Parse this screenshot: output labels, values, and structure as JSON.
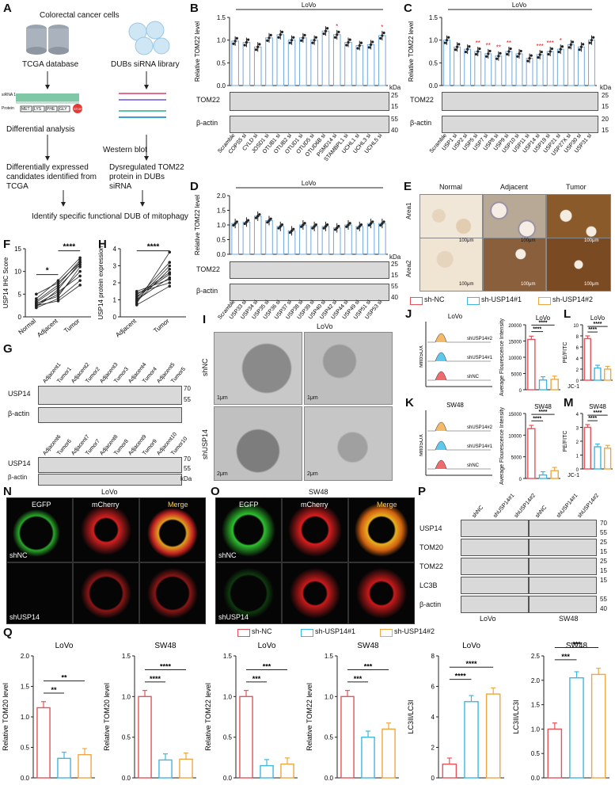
{
  "panels": {
    "A": {
      "letter": "A",
      "title": "Colorectal cancer cells",
      "tcga": "TCGA database",
      "dubs": "DUBs siRNA library",
      "diff": "Differential analysis",
      "wb": "Western blot",
      "cand": "Differentially expressed candidates identified from TCGA",
      "dysreg": "Dysregulated TOM22 protein in DUBs siRNA",
      "identify": "Identify specific functional DUB of mitophagy",
      "seq_label": "siRNA 1",
      "protein_label": "Protein",
      "aa": [
        "MET",
        "LYS",
        "PHE",
        "GLY"
      ],
      "stop": "STOP"
    },
    "B": {
      "letter": "B",
      "cell": "LoVo",
      "ylabel": "Relative TOM22 level",
      "blot1": "TOM22",
      "blot2": "β-actin",
      "kda": "kDa",
      "mw1": [
        "25",
        "15"
      ],
      "mw2": [
        "55",
        "40"
      ]
    },
    "C": {
      "letter": "C",
      "cell": "LoVo",
      "ylabel": "Relative TOM22 level",
      "blot1": "TOM22",
      "blot2": "β-actin",
      "kda": "kDa",
      "mw1": [
        "25",
        "15"
      ],
      "mw2": [
        "20",
        "15"
      ]
    },
    "D": {
      "letter": "D",
      "cell": "LoVo",
      "ylabel": "Relative TOM22 level",
      "blot1": "TOM22",
      "blot2": "β-actin",
      "kda": "kDa",
      "mw1": [
        "25",
        "15"
      ],
      "mw2": [
        "55",
        "40"
      ]
    },
    "E": {
      "letter": "E",
      "cols": [
        "Normal",
        "Adjacent",
        "Tumor"
      ],
      "rows": [
        "Area1",
        "Area2"
      ],
      "scale": "100μm"
    },
    "F": {
      "letter": "F"
    },
    "G": {
      "letter": "G",
      "row1": [
        "Adjacent1",
        "Tumor1",
        "Adjacent2",
        "Tumor2",
        "Adjacent3",
        "Tumor3",
        "Adjacent4",
        "Tumor4",
        "Adjacent5",
        "Tumor5"
      ],
      "row2": [
        "Adjacent6",
        "Tumor6",
        "Adjacent7",
        "Tumor7",
        "Adjacent8",
        "Tumor8",
        "Adjacent9",
        "Tumor9",
        "Adjacent10",
        "Tumor10"
      ],
      "blot1": "USP14",
      "blot2": "β-actin",
      "mw": [
        "70",
        "55"
      ],
      "mw2": [
        "55",
        "40"
      ],
      "kda": "kDa"
    },
    "H": {
      "letter": "H"
    },
    "I": {
      "letter": "I",
      "cell": "LoVo",
      "rows": [
        "shNC",
        "shUSP14"
      ],
      "scale_a": "1μm",
      "scale_b": "1μm",
      "scale_c": "2μm",
      "scale_d": "2μm"
    },
    "J": {
      "letter": "J",
      "cell": "LoVo",
      "xlabel": "MitoSOX",
      "traces": [
        "shUSP14#2",
        "shUSP14#1",
        "shNC"
      ],
      "bar_title": "LoVo",
      "bar_ylabel": "Average Flourescence Intensity"
    },
    "K": {
      "letter": "K",
      "cell": "SW48",
      "xlabel": "MitoSOX",
      "traces": [
        "shUSP14#2",
        "shUSP14#1",
        "shNC"
      ],
      "bar_title": "SW48",
      "bar_ylabel": "Average Flourescence Intensity"
    },
    "L": {
      "letter": "L",
      "cell": "LoVo",
      "ylabel": "PE/FITC",
      "xlabel": "JC-1"
    },
    "M": {
      "letter": "M",
      "cell": "SW48",
      "ylabel": "PE/FITC",
      "xlabel": "JC-1"
    },
    "N": {
      "letter": "N",
      "cell": "LoVo",
      "channels": [
        "EGFP",
        "mCherry",
        "Merge"
      ],
      "rows": [
        "shNC",
        "shUSP14"
      ]
    },
    "O": {
      "letter": "O",
      "cell": "SW48",
      "channels": [
        "EGFP",
        "mCherry",
        "Merge"
      ],
      "rows": [
        "shNC",
        "shUSP14"
      ]
    },
    "P": {
      "letter": "P",
      "lanes": [
        "shNC",
        "shUSP14#1",
        "shUSP14#2",
        "shNC",
        "shUSP14#1",
        "shUSP14#2"
      ],
      "blots": [
        "USP14",
        "TOM20",
        "TOM22",
        "LC3B",
        "β-actin"
      ],
      "mw": [
        "70",
        "55",
        "25",
        "15",
        "25",
        "15",
        "15",
        "55",
        "40"
      ],
      "cells": [
        "LoVo",
        "SW48"
      ]
    },
    "Q": {
      "letter": "Q"
    }
  },
  "legend": [
    "sh-NC",
    "sh-USP14#1",
    "sh-USP14#2"
  ],
  "colors": {
    "nc": "#e8525a",
    "s1": "#3fb8e0",
    "s2": "#f0a640",
    "bar_border": "#6fa8dc",
    "star": "#e02020"
  },
  "chart_data": [
    {
      "id": "B",
      "type": "bar",
      "title": "LoVo",
      "ylabel": "Relative TOM22 level",
      "ylim": [
        0,
        1.5
      ],
      "yticks": [
        0,
        0.5,
        1.0,
        1.5
      ],
      "categories": [
        "Scramble",
        "COPS5 si",
        "CYLD si",
        "JOSD1 si",
        "OTUB1 si",
        "OTUB2 si",
        "OTUD1 si",
        "OTUD5 si",
        "OTUD6B si",
        "PSMD14 si",
        "STAMBPL1 si",
        "UCHL1 si",
        "UCHL3 si",
        "UCHL5 si"
      ],
      "values": [
        0.98,
        0.95,
        0.85,
        1.05,
        1.12,
        1.0,
        1.05,
        1.0,
        1.2,
        1.12,
        0.95,
        0.88,
        0.9,
        1.1
      ],
      "stars": [
        "",
        "",
        "",
        "",
        "",
        "",
        "",
        "",
        "",
        "*",
        "",
        "",
        "",
        "*"
      ]
    },
    {
      "id": "C",
      "type": "bar",
      "title": "LoVo",
      "ylabel": "Relative TOM22 level",
      "ylim": [
        0,
        1.5
      ],
      "yticks": [
        0,
        0.5,
        1.0,
        1.5
      ],
      "categories": [
        "Scramble",
        "USP1 si",
        "USP2 si",
        "USP5 si",
        "USP7 si",
        "USP8 si",
        "USP9 si",
        "USP10 si",
        "USP11 si",
        "USP14 si",
        "USP19 si",
        "USP21 si",
        "USP27X si",
        "USP30 si",
        "USP31 si"
      ],
      "values": [
        1.0,
        0.85,
        0.8,
        0.75,
        0.7,
        0.65,
        0.75,
        0.7,
        0.6,
        0.68,
        0.75,
        0.8,
        0.9,
        0.85,
        1.0
      ],
      "stars": [
        "",
        "",
        "",
        "**",
        "**",
        "**",
        "**",
        "",
        "",
        "***",
        "***",
        "*",
        "",
        "",
        ""
      ]
    },
    {
      "id": "D",
      "type": "bar",
      "title": "LoVo",
      "ylabel": "Relative TOM22 level",
      "ylim": [
        0,
        2.0
      ],
      "yticks": [
        0,
        0.5,
        1.0,
        1.5,
        2.0
      ],
      "categories": [
        "Scramble",
        "USP33 si",
        "USP34 si",
        "USP35 si",
        "USP36 si",
        "USP37 si",
        "USP38 si",
        "USP39 si",
        "USP40 si",
        "USP42 si",
        "USP44 si",
        "USP49 si",
        "USP51 si",
        "USP53 si"
      ],
      "values": [
        1.05,
        1.1,
        1.3,
        1.15,
        0.95,
        0.8,
        1.0,
        0.95,
        0.95,
        0.9,
        1.0,
        0.95,
        1.05,
        1.05
      ],
      "stars": [
        "",
        "",
        "",
        "",
        "",
        "",
        "",
        "",
        "",
        "",
        "",
        "",
        "",
        ""
      ]
    },
    {
      "id": "F",
      "type": "line",
      "ylabel": "USP14 IHC Score",
      "ylim": [
        0,
        15
      ],
      "yticks": [
        0,
        5,
        10,
        15
      ],
      "categories": [
        "Normal",
        "Adjacent",
        "Tumor"
      ],
      "series": [
        {
          "values": [
            2.0,
            4.0,
            8.0
          ]
        },
        {
          "values": [
            2.5,
            5.0,
            10.0
          ]
        },
        {
          "values": [
            3.0,
            4.5,
            11.0
          ]
        },
        {
          "values": [
            2.2,
            6.0,
            12.0
          ]
        },
        {
          "values": [
            3.5,
            7.0,
            12.5
          ]
        },
        {
          "values": [
            4.0,
            8.0,
            13.0
          ]
        },
        {
          "values": [
            2.8,
            5.5,
            9.0
          ]
        },
        {
          "values": [
            3.2,
            6.5,
            11.5
          ]
        },
        {
          "values": [
            5.0,
            7.5,
            12.0
          ]
        },
        {
          "values": [
            2.5,
            3.5,
            7.0
          ]
        }
      ],
      "sig": [
        "*",
        "****"
      ]
    },
    {
      "id": "H",
      "type": "line",
      "ylabel": "USP14 protein expression",
      "ylim": [
        0,
        4
      ],
      "yticks": [
        0,
        1,
        2,
        3,
        4
      ],
      "categories": [
        "Adjacent",
        "Tumor"
      ],
      "series": [
        {
          "values": [
            0.8,
            3.8
          ]
        },
        {
          "values": [
            1.0,
            3.0
          ]
        },
        {
          "values": [
            1.2,
            2.5
          ]
        },
        {
          "values": [
            0.9,
            2.8
          ]
        },
        {
          "values": [
            1.5,
            2.2
          ]
        },
        {
          "values": [
            1.1,
            3.2
          ]
        },
        {
          "values": [
            1.4,
            2.0
          ]
        },
        {
          "values": [
            0.7,
            1.8
          ]
        },
        {
          "values": [
            1.3,
            2.6
          ]
        },
        {
          "values": [
            1.0,
            2.3
          ]
        }
      ],
      "sig": [
        "****"
      ]
    },
    {
      "id": "J",
      "type": "bar",
      "title": "LoVo",
      "ylabel": "Average Flourescence Intensity",
      "ylim": [
        0,
        20000
      ],
      "yticks": [
        0,
        5000,
        10000,
        15000,
        20000
      ],
      "categories": [
        "sh-NC",
        "sh-USP14#1",
        "sh-USP14#2"
      ],
      "values": [
        15500,
        3000,
        3200
      ],
      "sig": [
        "****",
        "****"
      ]
    },
    {
      "id": "K",
      "type": "bar",
      "title": "SW48",
      "ylabel": "Average Flourescence Intensity",
      "ylim": [
        0,
        15000
      ],
      "yticks": [
        0,
        5000,
        10000,
        15000
      ],
      "categories": [
        "sh-NC",
        "sh-USP14#1",
        "sh-USP14#2"
      ],
      "values": [
        11500,
        800,
        1800
      ],
      "sig": [
        "****",
        "****"
      ]
    },
    {
      "id": "L",
      "type": "bar",
      "title": "LoVo",
      "ylabel": "PE/FITC",
      "xlabel": "JC-1",
      "ylim": [
        0,
        10
      ],
      "yticks": [
        0,
        2,
        4,
        6,
        8,
        10
      ],
      "categories": [
        "sh-NC",
        "sh-USP14#1",
        "sh-USP14#2"
      ],
      "values": [
        7.5,
        2.2,
        2.0
      ],
      "sig": [
        "****",
        "****"
      ]
    },
    {
      "id": "M",
      "type": "bar",
      "title": "SW48",
      "ylabel": "PE/FITC",
      "xlabel": "JC-1",
      "ylim": [
        0,
        4
      ],
      "yticks": [
        0,
        1,
        2,
        3,
        4
      ],
      "categories": [
        "sh-NC",
        "sh-USP14#1",
        "sh-USP14#2"
      ],
      "values": [
        3.0,
        1.6,
        1.5
      ],
      "sig": [
        "****",
        "****"
      ]
    },
    {
      "id": "Q1",
      "type": "bar",
      "title": "LoVo",
      "ylabel": "Relative TOM20 level",
      "ylim": [
        0,
        2.0
      ],
      "yticks": [
        0.0,
        0.5,
        1.0,
        1.5,
        2.0
      ],
      "categories": [
        "sh-NC",
        "sh-USP14#1",
        "sh-USP14#2"
      ],
      "values": [
        1.15,
        0.32,
        0.38
      ],
      "sig": [
        "**",
        "**"
      ]
    },
    {
      "id": "Q2",
      "type": "bar",
      "title": "SW48",
      "ylabel": "Relative TOM20 level",
      "ylim": [
        0,
        1.5
      ],
      "yticks": [
        0.0,
        0.5,
        1.0,
        1.5
      ],
      "categories": [
        "sh-NC",
        "sh-USP14#1",
        "sh-USP14#2"
      ],
      "values": [
        1.0,
        0.22,
        0.23
      ],
      "sig": [
        "****",
        "****"
      ]
    },
    {
      "id": "Q3",
      "type": "bar",
      "title": "LoVo",
      "ylabel": "Relative TOM22 level",
      "ylim": [
        0,
        1.5
      ],
      "yticks": [
        0.0,
        0.5,
        1.0,
        1.5
      ],
      "categories": [
        "sh-NC",
        "sh-USP14#1",
        "sh-USP14#2"
      ],
      "values": [
        1.0,
        0.15,
        0.17
      ],
      "sig": [
        "***",
        "***"
      ]
    },
    {
      "id": "Q4",
      "type": "bar",
      "title": "SW48",
      "ylabel": "Relative TOM22 level",
      "ylim": [
        0,
        1.5
      ],
      "yticks": [
        0.0,
        0.5,
        1.0,
        1.5
      ],
      "categories": [
        "sh-NC",
        "sh-USP14#1",
        "sh-USP14#2"
      ],
      "values": [
        1.0,
        0.5,
        0.6
      ],
      "sig": [
        "***",
        "***"
      ]
    },
    {
      "id": "Q5",
      "type": "bar",
      "title": "LoVo",
      "ylabel": "LC3II/LC3I",
      "ylim": [
        0,
        8
      ],
      "yticks": [
        0,
        2,
        4,
        6,
        8
      ],
      "categories": [
        "sh-NC",
        "sh-USP14#1",
        "sh-USP14#2"
      ],
      "values": [
        0.9,
        5.0,
        5.5
      ],
      "sig": [
        "****",
        "****"
      ]
    },
    {
      "id": "Q6",
      "type": "bar",
      "title": "SW48",
      "ylabel": "LC3II/LC3I",
      "ylim": [
        0,
        2.5
      ],
      "yticks": [
        0.0,
        0.5,
        1.0,
        1.5,
        2.0,
        2.5
      ],
      "categories": [
        "sh-NC",
        "sh-USP14#1",
        "sh-USP14#2"
      ],
      "values": [
        1.0,
        2.05,
        2.12
      ],
      "sig": [
        "***",
        "***"
      ]
    }
  ]
}
